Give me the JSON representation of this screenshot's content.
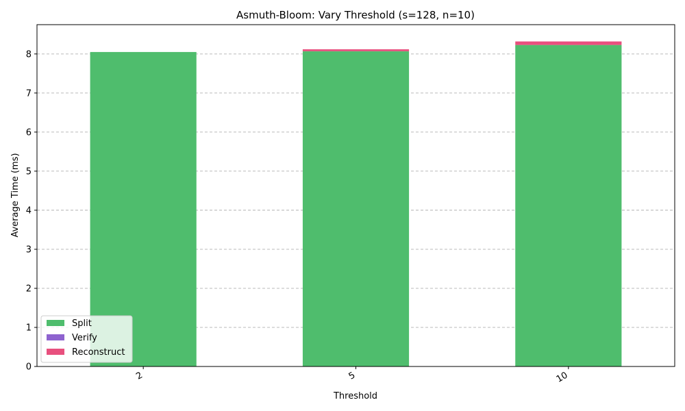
{
  "chart_data": {
    "type": "bar",
    "stacked": true,
    "title": "Asmuth-Bloom: Vary Threshold (s=128, n=10)",
    "xlabel": "Threshold",
    "ylabel": "Average Time (ms)",
    "categories": [
      "2",
      "5",
      "10"
    ],
    "series": [
      {
        "name": "Split",
        "color": "#4fbd6d",
        "values": [
          8.05,
          8.07,
          8.23
        ]
      },
      {
        "name": "Verify",
        "color": "#8e63cf",
        "values": [
          0.0,
          0.0,
          0.0
        ]
      },
      {
        "name": "Reconstruct",
        "color": "#e8507e",
        "values": [
          0.0,
          0.05,
          0.09
        ]
      }
    ],
    "ylim": [
      0,
      8.75
    ],
    "yticks": [
      "0",
      "1",
      "2",
      "3",
      "4",
      "5",
      "6",
      "7",
      "8"
    ],
    "grid": "y",
    "legend_position": "lower-left"
  }
}
